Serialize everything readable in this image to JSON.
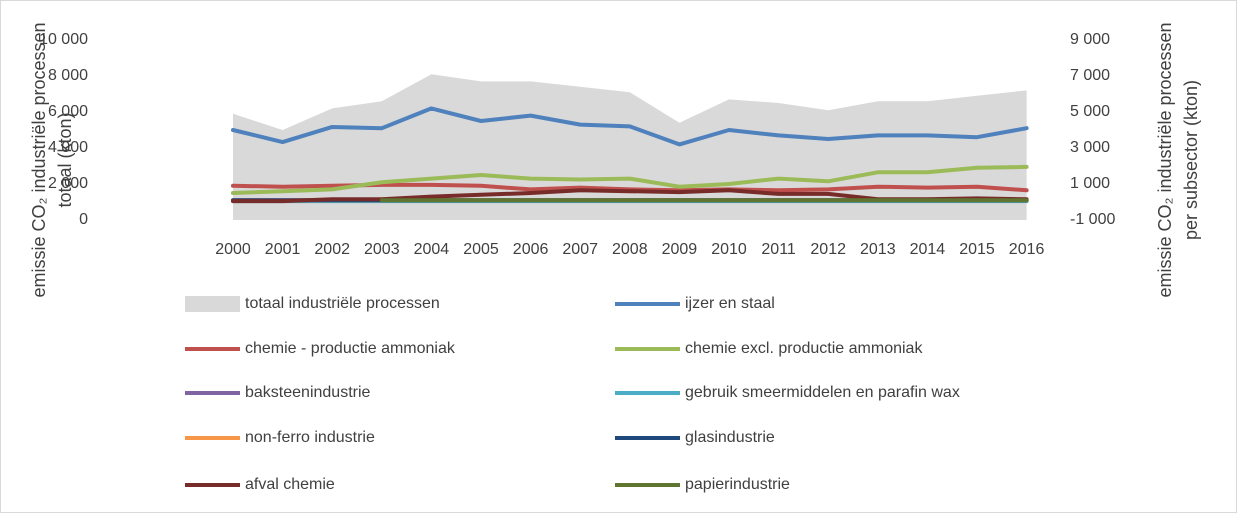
{
  "chart_data": {
    "type": "combo",
    "y_label": [
      "emissie CO₂ industriële processen",
      "totaal (kton)"
    ],
    "y2_label": [
      "emissie CO₂ industriële processen",
      "per subsector (kton)"
    ],
    "categories": [
      "2000",
      "2001",
      "2002",
      "2003",
      "2004",
      "2005",
      "2006",
      "2007",
      "2008",
      "2009",
      "2010",
      "2011",
      "2012",
      "2013",
      "2014",
      "2015",
      "2016"
    ],
    "ylim": [
      0,
      10000
    ],
    "yticks": [
      0,
      {
        "value": 2000,
        "label": "2 000"
      },
      {
        "value": 4000,
        "label": "4 000"
      },
      {
        "value": 6000,
        "label": "6 000"
      },
      {
        "value": 8000,
        "label": "8 000"
      },
      {
        "value": 10000,
        "label": "10 000"
      }
    ],
    "y2lim": [
      -1000,
      9000
    ],
    "y2ticks": [
      {
        "value": -1000,
        "label": "-1 000"
      },
      {
        "value": 1000,
        "label": "1 000"
      },
      {
        "value": 3000,
        "label": "3 000"
      },
      {
        "value": 5000,
        "label": "5 000"
      },
      {
        "value": 7000,
        "label": "7 000"
      },
      {
        "value": 9000,
        "label": "9 000"
      }
    ],
    "grid": false,
    "legend": "bottom",
    "series": [
      {
        "name": "totaal industriële processen",
        "type": "area",
        "color": "#d9d9d9",
        "values": [
          5900,
          5000,
          6200,
          6600,
          8100,
          7700,
          7700,
          7400,
          7100,
          5400,
          6700,
          6500,
          6100,
          6600,
          6600,
          6900,
          7200
        ]
      },
      {
        "name": "ijzer en staal",
        "type": "line",
        "axis": "y2",
        "color": "#4f81bd",
        "values": [
          4000,
          3330,
          4170,
          4100,
          5200,
          4500,
          4800,
          4300,
          4200,
          3200,
          4000,
          3700,
          3500,
          3700,
          3700,
          3600,
          4100
        ]
      },
      {
        "name": "chemie - productie ammoniak",
        "type": "line",
        "axis": "y2",
        "color": "#c0504d",
        "values": [
          900,
          850,
          900,
          950,
          950,
          900,
          700,
          800,
          700,
          650,
          700,
          650,
          700,
          850,
          800,
          850,
          650
        ]
      },
      {
        "name": "chemie excl. productie ammoniak",
        "type": "line",
        "axis": "y2",
        "color": "#9bbb59",
        "values": [
          500,
          600,
          700,
          1100,
          1300,
          1500,
          1300,
          1250,
          1300,
          850,
          1000,
          1300,
          1150,
          1650,
          1650,
          1900,
          1950
        ]
      },
      {
        "name": "baksteenindustrie",
        "type": "line",
        "axis": "y2",
        "color": "#8064a2",
        "values": [
          100,
          100,
          100,
          100,
          100,
          100,
          100,
          100,
          100,
          100,
          100,
          100,
          100,
          100,
          100,
          100,
          100
        ]
      },
      {
        "name": "gebruik smeermiddelen en parafin wax",
        "type": "line",
        "axis": "y2",
        "color": "#4bacc6",
        "values": [
          50,
          50,
          50,
          50,
          50,
          50,
          50,
          50,
          50,
          50,
          50,
          50,
          50,
          50,
          50,
          50,
          50
        ]
      },
      {
        "name": "non-ferro industrie",
        "type": "line",
        "axis": "y2",
        "color": "#f79646",
        "values": [
          100,
          100,
          100,
          100,
          100,
          100,
          100,
          100,
          100,
          100,
          100,
          100,
          100,
          100,
          100,
          100,
          100
        ]
      },
      {
        "name": "glasindustrie",
        "type": "line",
        "axis": "y2",
        "color": "#1f497d",
        "values": [
          100,
          100,
          100,
          100,
          100,
          100,
          100,
          100,
          100,
          100,
          100,
          100,
          100,
          100,
          100,
          100,
          100
        ]
      },
      {
        "name": "afval chemie",
        "type": "line",
        "axis": "y2",
        "color": "#772c2a",
        "values": [
          50,
          50,
          150,
          150,
          300,
          400,
          500,
          650,
          600,
          550,
          650,
          450,
          450,
          150,
          150,
          200,
          150
        ]
      },
      {
        "name": "papierindustrie",
        "type": "line",
        "axis": "y2",
        "color": "#5f7530",
        "values": [
          null,
          null,
          null,
          100,
          100,
          100,
          100,
          100,
          100,
          100,
          100,
          100,
          100,
          100,
          100,
          100,
          100
        ]
      }
    ]
  }
}
